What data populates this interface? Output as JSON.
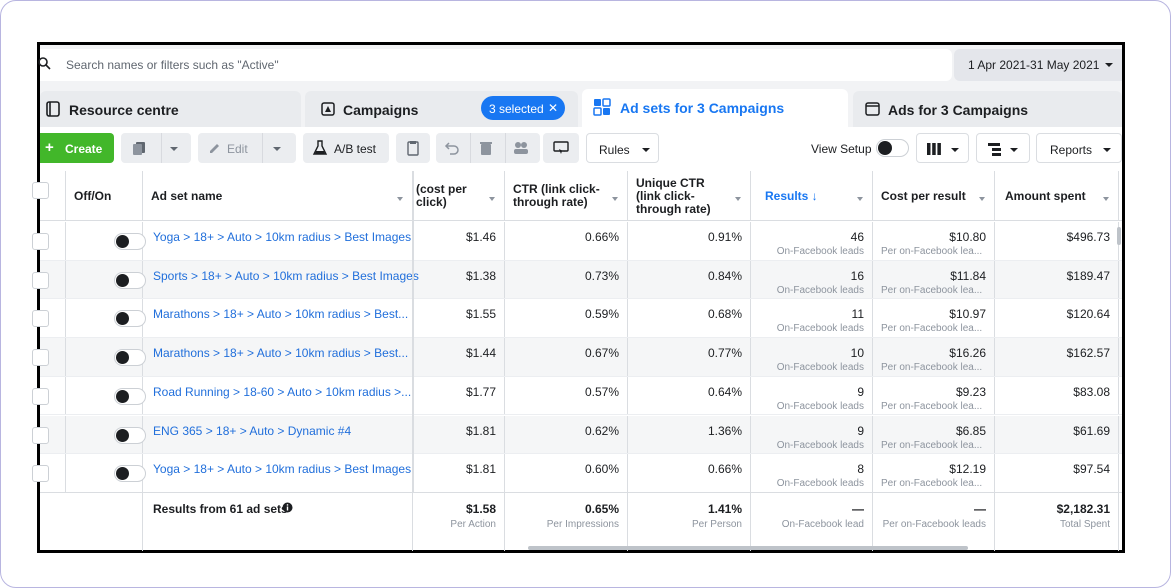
{
  "search": {
    "placeholder": "Search names or filters such as \"Active\""
  },
  "date_range": "1 Apr 2021-31 May 2021",
  "tabs": {
    "resource": "Resource centre",
    "campaigns": "Campaigns",
    "selected_badge": "3 selected",
    "adsets": "Ad sets for 3 Campaigns",
    "ads": "Ads for 3 Campaigns"
  },
  "toolbar": {
    "create": "Create",
    "edit": "Edit",
    "ab_test": "A/B test",
    "rules": "Rules",
    "view_setup": "View Setup",
    "reports": "Reports"
  },
  "columns": {
    "onoff": "Off/On",
    "name": "Ad set name",
    "cpc": "(cost per click)",
    "ctr": "CTR (link click-through rate)",
    "uctr": "Unique CTR (link click-through rate)",
    "results": "Results ↓",
    "cpr": "Cost per result",
    "spent": "Amount spent"
  },
  "rows": [
    {
      "name": "Yoga > 18+ > Auto > 10km radius > Best Images",
      "cpc": "$1.46",
      "ctr": "0.66%",
      "uctr": "0.91%",
      "results": "46",
      "results_sub": "On-Facebook leads",
      "cpr": "$10.80",
      "cpr_sub": "Per on-Facebook lea...",
      "spent": "$496.73"
    },
    {
      "name": "Sports > 18+ > Auto > 10km radius > Best Images",
      "cpc": "$1.38",
      "ctr": "0.73%",
      "uctr": "0.84%",
      "results": "16",
      "results_sub": "On-Facebook leads",
      "cpr": "$11.84",
      "cpr_sub": "Per on-Facebook lea...",
      "spent": "$189.47"
    },
    {
      "name": "Marathons > 18+ > Auto > 10km radius > Best...",
      "cpc": "$1.55",
      "ctr": "0.59%",
      "uctr": "0.68%",
      "results": "11",
      "results_sub": "On-Facebook leads",
      "cpr": "$10.97",
      "cpr_sub": "Per on-Facebook lea...",
      "spent": "$120.64"
    },
    {
      "name": "Marathons > 18+ > Auto > 10km radius > Best...",
      "cpc": "$1.44",
      "ctr": "0.67%",
      "uctr": "0.77%",
      "results": "10",
      "results_sub": "On-Facebook leads",
      "cpr": "$16.26",
      "cpr_sub": "Per on-Facebook lea...",
      "spent": "$162.57"
    },
    {
      "name": "Road Running > 18-60 > Auto > 10km radius >...",
      "cpc": "$1.77",
      "ctr": "0.57%",
      "uctr": "0.64%",
      "results": "9",
      "results_sub": "On-Facebook leads",
      "cpr": "$9.23",
      "cpr_sub": "Per on-Facebook lea...",
      "spent": "$83.08"
    },
    {
      "name": "ENG 365 > 18+ > Auto > Dynamic #4",
      "cpc": "$1.81",
      "ctr": "0.62%",
      "uctr": "1.36%",
      "results": "9",
      "results_sub": "On-Facebook leads",
      "cpr": "$6.85",
      "cpr_sub": "Per on-Facebook lea...",
      "spent": "$61.69"
    },
    {
      "name": "Yoga > 18+ > Auto > 10km radius > Best Images",
      "cpc": "$1.81",
      "ctr": "0.60%",
      "uctr": "0.66%",
      "results": "8",
      "results_sub": "On-Facebook leads",
      "cpr": "$12.19",
      "cpr_sub": "Per on-Facebook lea...",
      "spent": "$97.54"
    }
  ],
  "totals": {
    "label": "Results from 61 ad sets",
    "cpc": "$1.58",
    "cpc_sub": "Per Action",
    "ctr": "0.65%",
    "ctr_sub": "Per Impressions",
    "uctr": "1.41%",
    "uctr_sub": "Per Person",
    "results": "—",
    "results_sub": "On-Facebook lead",
    "cpr": "—",
    "cpr_sub": "Per on-Facebook leads",
    "spent": "$2,182.31",
    "spent_sub": "Total Spent"
  },
  "colors": {
    "accent": "#1877f2",
    "create": "#42b72a",
    "link": "#216fdb"
  }
}
